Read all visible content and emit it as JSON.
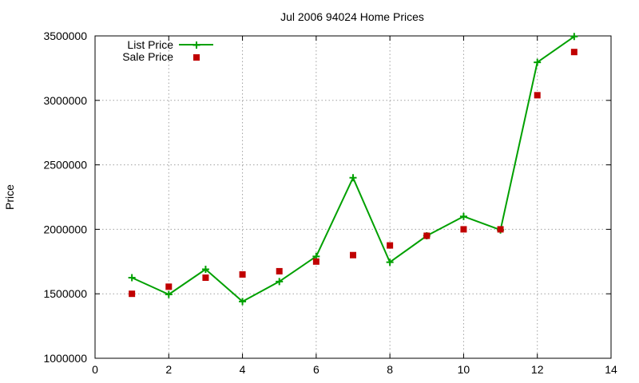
{
  "chart_data": {
    "type": "line",
    "title": "Jul 2006 94024 Home Prices",
    "xlabel": "",
    "ylabel": "Price",
    "xlim": [
      0,
      14
    ],
    "ylim": [
      1000000,
      3500000
    ],
    "x_ticks": [
      "0",
      "2",
      "4",
      "6",
      "8",
      "10",
      "12",
      "14"
    ],
    "y_ticks": [
      "1000000",
      "1500000",
      "2000000",
      "2500000",
      "3000000",
      "3500000"
    ],
    "grid": true,
    "legend_position": "top-left",
    "series": [
      {
        "name": "List Price",
        "style": "line+points",
        "marker": "plus",
        "color": "#00a000",
        "x": [
          1,
          2,
          3,
          4,
          5,
          6,
          7,
          8,
          9,
          10,
          11,
          12,
          13
        ],
        "values": [
          1625000,
          1495000,
          1690000,
          1440000,
          1595000,
          1790000,
          2400000,
          1745000,
          1950000,
          2100000,
          1995000,
          3295000,
          3495000
        ]
      },
      {
        "name": "Sale Price",
        "style": "points",
        "marker": "square",
        "color": "#c00000",
        "x": [
          1,
          2,
          3,
          4,
          5,
          6,
          7,
          8,
          9,
          10,
          11,
          12,
          13
        ],
        "values": [
          1500000,
          1555000,
          1625000,
          1650000,
          1675000,
          1750000,
          1800000,
          1875000,
          1950000,
          2000000,
          2000000,
          3040000,
          3375000
        ]
      }
    ]
  }
}
